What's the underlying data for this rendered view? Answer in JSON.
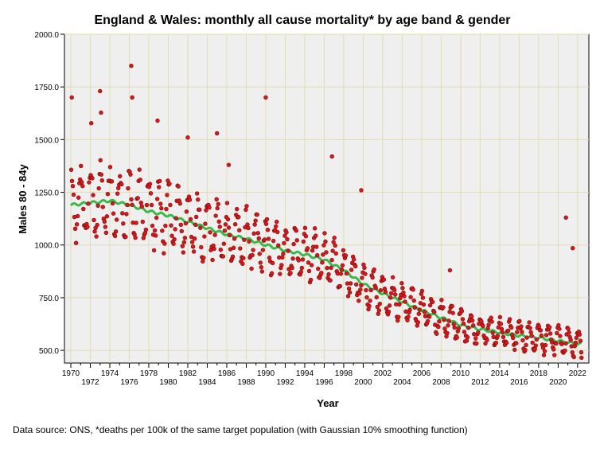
{
  "chart_data": {
    "type": "scatter",
    "title": "England & Wales: monthly all cause mortality* by age band & gender",
    "xlabel": "Year",
    "ylabel": "Males 80 - 84y",
    "xlim": [
      1970,
      2022.5
    ],
    "ylim": [
      440,
      2000
    ],
    "yticks": [
      "500.0",
      "750.0",
      "1000.0",
      "1250.0",
      "1500.0",
      "1750.0",
      "2000.0"
    ],
    "ytick_values": [
      500,
      750,
      1000,
      1250,
      1500,
      1750,
      2000
    ],
    "xticks_major": [
      "1970",
      "1972",
      "1974",
      "1976",
      "1978",
      "1980",
      "1982",
      "1984",
      "1986",
      "1988",
      "1990",
      "1992",
      "1994",
      "1996",
      "1998",
      "2000",
      "2002",
      "2004",
      "2006",
      "2008",
      "2010",
      "2012",
      "2014",
      "2016",
      "2018",
      "2020",
      "2022"
    ],
    "grid": true,
    "colors": {
      "points": "#d7191c",
      "point_edge": "#7a0b0b",
      "smooth_line": "#3cb84a",
      "plot_bg": "#efefef",
      "grid": "#e2dcb0"
    },
    "trend": {
      "name": "Gaussian 10% smoothing",
      "x": [
        1970,
        1972,
        1974,
        1976,
        1978,
        1980,
        1982,
        1984,
        1986,
        1988,
        1990,
        1992,
        1994,
        1996,
        1998,
        2000,
        2002,
        2004,
        2006,
        2008,
        2010,
        2012,
        2014,
        2016,
        2018,
        2020,
        2022
      ],
      "y": [
        1190,
        1200,
        1210,
        1190,
        1160,
        1140,
        1110,
        1080,
        1050,
        1030,
        1000,
        975,
        955,
        930,
        880,
        815,
        770,
        730,
        690,
        655,
        620,
        600,
        585,
        570,
        560,
        545,
        530
      ]
    },
    "outliers": [
      {
        "x": 1970.1,
        "y": 1700
      },
      {
        "x": 1972.1,
        "y": 1578
      },
      {
        "x": 1973.0,
        "y": 1730
      },
      {
        "x": 1973.1,
        "y": 1628
      },
      {
        "x": 1976.2,
        "y": 1850
      },
      {
        "x": 1976.3,
        "y": 1700
      },
      {
        "x": 1978.9,
        "y": 1590
      },
      {
        "x": 1982.0,
        "y": 1510
      },
      {
        "x": 1985.0,
        "y": 1530
      },
      {
        "x": 1986.2,
        "y": 1380
      },
      {
        "x": 1990.0,
        "y": 1700
      },
      {
        "x": 1996.8,
        "y": 1420
      },
      {
        "x": 1999.8,
        "y": 1260
      },
      {
        "x": 2008.9,
        "y": 880
      },
      {
        "x": 2020.8,
        "y": 1130
      },
      {
        "x": 2021.5,
        "y": 985
      },
      {
        "x": 2022.4,
        "y": 465
      }
    ],
    "seasonal_amplitude": [
      190,
      190,
      190,
      185,
      180,
      175,
      170,
      165,
      160,
      150,
      145,
      140,
      135,
      130,
      120,
      110,
      100,
      95,
      90,
      85,
      80,
      75,
      75,
      75,
      75,
      75,
      75
    ]
  },
  "footer": {
    "source": "Data source: ONS, *deaths per 100k of the same target population (with Gaussian 10% smoothing function)"
  }
}
